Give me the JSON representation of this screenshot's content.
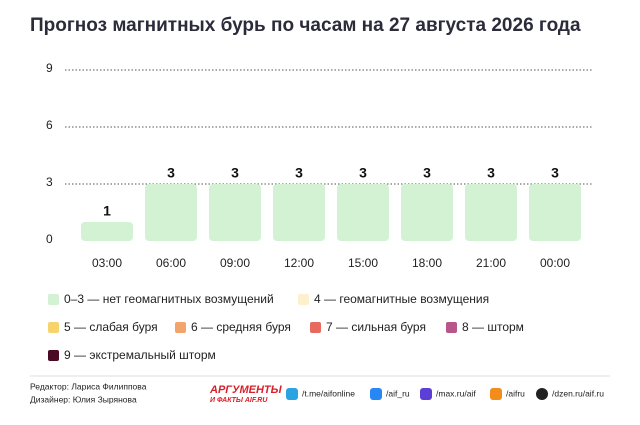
{
  "chart_data": {
    "type": "bar",
    "title": "Прогноз магнитных бурь по часам на 27 августа 2026 года",
    "categories": [
      "03:00",
      "06:00",
      "09:00",
      "12:00",
      "15:00",
      "18:00",
      "21:00",
      "00:00"
    ],
    "values": [
      1,
      3,
      3,
      3,
      3,
      3,
      3,
      3
    ],
    "color": "#d3f1d3",
    "ylim": [
      0,
      9
    ],
    "yticks": [
      0,
      3,
      6,
      9
    ],
    "grid": true,
    "legend": [
      {
        "label": "0–3 — нет геомагнитных возмущений",
        "color": "#d3f1d3"
      },
      {
        "label": "4 — геомагнитные возмущения",
        "color": "#fdf0cc"
      },
      {
        "label": "5 — слабая буря",
        "color": "#f7d36b"
      },
      {
        "label": "6 — средняя буря",
        "color": "#f2a46b"
      },
      {
        "label": "7 — сильная буря",
        "color": "#e86a5e"
      },
      {
        "label": "8 — шторм",
        "color": "#b8558a"
      },
      {
        "label": "9 — экстремальный шторм",
        "color": "#4a0a24"
      }
    ]
  },
  "footer": {
    "editor": "Редактор: Лариса Филиппова",
    "designer": "Дизайнер: Юлия Зырянова",
    "logo_top": "АРГУМЕНТЫ",
    "logo_bottom": "И ФАКТЫ AIF.RU",
    "links": [
      "/t.me/aifonline",
      "/aif_ru",
      "/max.ru/aif",
      "/aifru",
      "/dzen.ru/aif.ru"
    ]
  }
}
